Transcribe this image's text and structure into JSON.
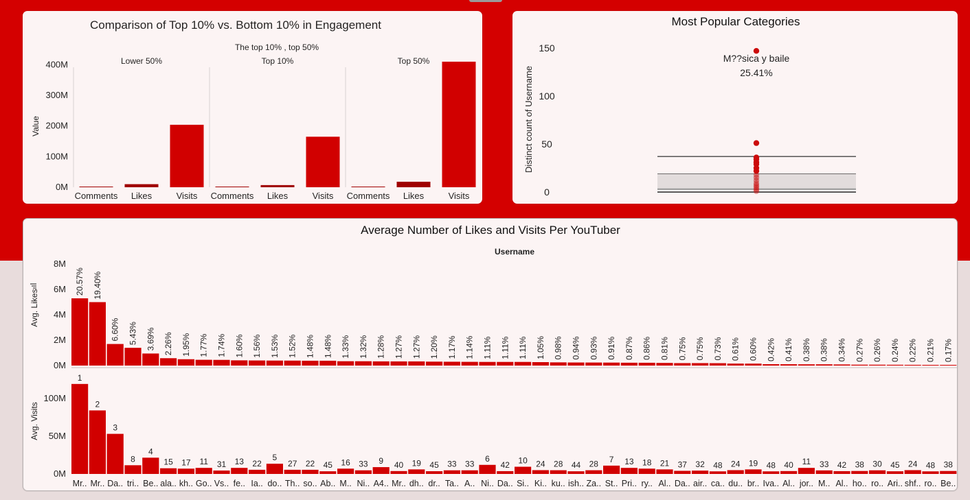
{
  "colors": {
    "background": "#e8dcdc",
    "band": "#d40000",
    "card": "#fcf4f4",
    "bar": "#d10000",
    "bar_dark": "#a00000",
    "point": "#cc0a0a"
  },
  "chart_data": [
    {
      "id": "engagement",
      "type": "bar",
      "title": "Comparison of Top 10% vs. Bottom 10% in Engagement",
      "subtitle": "The top 10% , top 50%",
      "ylabel": "Value",
      "ylim": [
        0,
        430000000
      ],
      "yticks": [
        {
          "label": "400M",
          "value": 400000000
        },
        {
          "label": "300M",
          "value": 300000000
        },
        {
          "label": "200M",
          "value": 200000000
        },
        {
          "label": "100M",
          "value": 100000000
        },
        {
          "label": "0M",
          "value": 0
        }
      ],
      "categories": [
        "Comments",
        "Likes",
        "Visits"
      ],
      "panels": [
        {
          "name": "Lower 50%",
          "values": [
            300000,
            10000000,
            204000000
          ]
        },
        {
          "name": "Top 10%",
          "values": [
            200000,
            7000000,
            165000000
          ]
        },
        {
          "name": "Top 50%",
          "values": [
            600000,
            18000000,
            410000000
          ]
        }
      ]
    },
    {
      "id": "categories",
      "type": "boxplot",
      "title": "Most Popular Categories",
      "ylabel": "Distinct count of Username",
      "ylim": [
        0,
        160
      ],
      "yticks": [
        {
          "label": "150",
          "value": 150
        },
        {
          "label": "100",
          "value": 100
        },
        {
          "label": "50",
          "value": 50
        },
        {
          "label": "0",
          "value": 0
        }
      ],
      "box": {
        "whisker_low": 0,
        "q1": 2,
        "median": 3,
        "q3": 19,
        "whisker_high": 37
      },
      "points": [
        147,
        51,
        36,
        34,
        31,
        29,
        25,
        22,
        18,
        15,
        12,
        9,
        7,
        5,
        3,
        1
      ],
      "annotation": {
        "label": "M??sica y baile",
        "value": "25.41%",
        "y": 147
      }
    },
    {
      "id": "youtubers",
      "type": "bar",
      "title": "Average Number of Likes and Visits Per YouTuber",
      "xlabel": "Username",
      "categories": [
        "Mr..",
        "Mr..",
        "Da..",
        "tri..",
        "Be..",
        "ala..",
        "kh..",
        "Go..",
        "Vs..",
        "fe..",
        "Ia..",
        "do..",
        "Th..",
        "so..",
        "Ab..",
        "M..",
        "Ni..",
        "A4..",
        "Mr..",
        "dh..",
        "dr..",
        "Ta..",
        "A..",
        "Ni..",
        "Da..",
        "Si..",
        "Ki..",
        "ku..",
        "ish..",
        "Za..",
        "St..",
        "Pri..",
        "ry..",
        "Al..",
        "Da..",
        "air..",
        "ca..",
        "du..",
        "br..",
        "Iva..",
        "Al..",
        "jor..",
        "M..",
        "Al..",
        "ho..",
        "ro..",
        "Ari..",
        "shf..",
        "ro..",
        "Be.."
      ],
      "likes": {
        "ylabel": "Avg. Likes",
        "ylim": [
          0,
          8000000
        ],
        "yticks": [
          {
            "label": "8M",
            "value": 8000000
          },
          {
            "label": "6M",
            "value": 6000000
          },
          {
            "label": "4M",
            "value": 4000000
          },
          {
            "label": "2M",
            "value": 2000000
          },
          {
            "label": "0M",
            "value": 0
          }
        ],
        "percent_labels": [
          "20.57%",
          "19.40%",
          "6.60%",
          "5.43%",
          "3.69%",
          "2.26%",
          "1.95%",
          "1.77%",
          "1.74%",
          "1.60%",
          "1.56%",
          "1.53%",
          "1.52%",
          "1.48%",
          "1.48%",
          "1.33%",
          "1.32%",
          "1.28%",
          "1.27%",
          "1.27%",
          "1.20%",
          "1.17%",
          "1.14%",
          "1.11%",
          "1.11%",
          "1.11%",
          "1.05%",
          "0.98%",
          "0.94%",
          "0.93%",
          "0.91%",
          "0.87%",
          "0.86%",
          "0.81%",
          "0.75%",
          "0.75%",
          "0.73%",
          "0.61%",
          "0.60%",
          "0.42%",
          "0.41%",
          "0.38%",
          "0.38%",
          "0.34%",
          "0.27%",
          "0.26%",
          "0.24%",
          "0.22%",
          "0.21%",
          "0.17%"
        ],
        "values": [
          5300000,
          5000000,
          1700000,
          1400000,
          950000,
          580000,
          500000,
          455000,
          448000,
          412000,
          402000,
          394000,
          391000,
          381000,
          381000,
          342000,
          340000,
          330000,
          327000,
          327000,
          309000,
          301000,
          293000,
          286000,
          286000,
          286000,
          270000,
          252000,
          242000,
          239000,
          234000,
          224000,
          221000,
          208000,
          193000,
          193000,
          188000,
          157000,
          154000,
          108000,
          105000,
          98000,
          98000,
          87000,
          69000,
          67000,
          62000,
          57000,
          54000,
          44000
        ]
      },
      "visits": {
        "ylabel": "Avg. Visits",
        "ylim": [
          0,
          127000000
        ],
        "yticks": [
          {
            "label": "100M",
            "value": 100000000
          },
          {
            "label": "50M",
            "value": 50000000
          },
          {
            "label": "0M",
            "value": 0
          }
        ],
        "rank_labels": [
          "1",
          "2",
          "3",
          "8",
          "4",
          "15",
          "17",
          "11",
          "31",
          "13",
          "22",
          "5",
          "27",
          "22",
          "45",
          "16",
          "33",
          "9",
          "40",
          "19",
          "45",
          "33",
          "33",
          "6",
          "42",
          "10",
          "24",
          "28",
          "44",
          "28",
          "7",
          "13",
          "18",
          "21",
          "37",
          "32",
          "48",
          "24",
          "19",
          "48",
          "40",
          "11",
          "33",
          "42",
          "38",
          "30",
          "45",
          "24",
          "48",
          "38"
        ],
        "values": [
          119000000,
          84000000,
          53000000,
          11500000,
          21500000,
          7500000,
          7000000,
          8000000,
          4500000,
          8000000,
          5500000,
          13500000,
          5500000,
          5500000,
          3500000,
          7000000,
          4800000,
          9000000,
          3800000,
          6000000,
          3600000,
          4800000,
          4800000,
          12000000,
          3700000,
          9500000,
          5000000,
          4900000,
          3500000,
          4900000,
          11000000,
          8000000,
          7000000,
          6000000,
          4100000,
          4400000,
          3400000,
          5000000,
          6000000,
          3400000,
          3800000,
          8000000,
          4700000,
          3700000,
          3900000,
          4800000,
          3500000,
          5000000,
          3400000,
          3900000
        ]
      }
    }
  ]
}
